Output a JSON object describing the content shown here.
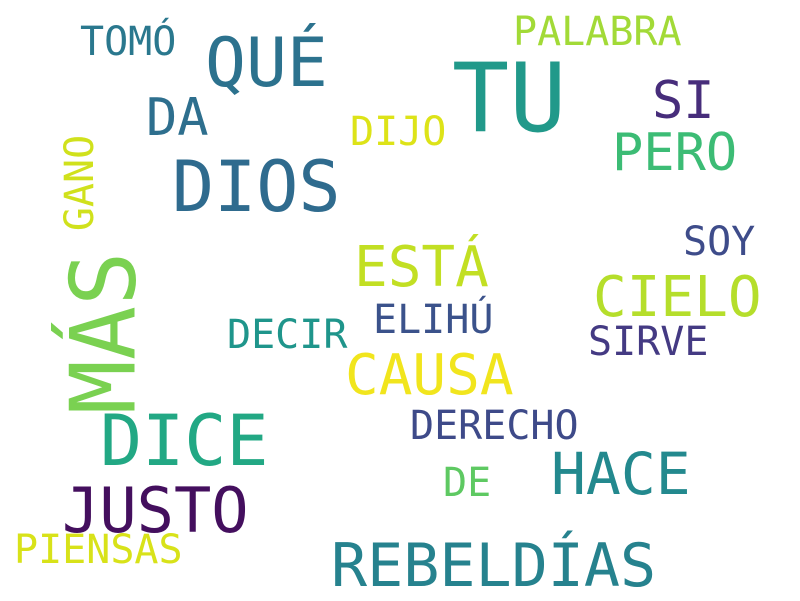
{
  "colors": {
    "background": "#ffffff",
    "palette": [
      "#440154",
      "#3b528b",
      "#21918c",
      "#5ec962",
      "#fde725"
    ]
  },
  "words": [
    {
      "text": "TU",
      "color": "#21998a"
    },
    {
      "text": "MÁS",
      "color": "#7ad151"
    },
    {
      "text": "DIOS",
      "color": "#2f6b8e"
    },
    {
      "text": "DICE",
      "color": "#22a884"
    },
    {
      "text": "QUÉ",
      "color": "#2c728e"
    },
    {
      "text": "JUSTO",
      "color": "#440f5e"
    },
    {
      "text": "REBELDÍAS",
      "color": "#26828e"
    },
    {
      "text": "HACE",
      "color": "#23898e"
    },
    {
      "text": "CIELO",
      "color": "#b5de2b"
    },
    {
      "text": "CAUSA",
      "color": "#f1e51d"
    },
    {
      "text": "ESTÁ",
      "color": "#c2df23"
    },
    {
      "text": "PERO",
      "color": "#3cbc75"
    },
    {
      "text": "DA",
      "color": "#2e6f8e"
    },
    {
      "text": "SI",
      "color": "#472d7b"
    },
    {
      "text": "PALABRA",
      "color": "#a2da37"
    },
    {
      "text": "DERECHO",
      "color": "#3e4a89"
    },
    {
      "text": "SIRVE",
      "color": "#443a83"
    },
    {
      "text": "ELIHÚ",
      "color": "#3b528b"
    },
    {
      "text": "DECIR",
      "color": "#1f958b"
    },
    {
      "text": "SOY",
      "color": "#3e4c8a"
    },
    {
      "text": "TOMÓ",
      "color": "#2a788e"
    },
    {
      "text": "DIJO",
      "color": "#dde318"
    },
    {
      "text": "PIENSAS",
      "color": "#d8e219"
    },
    {
      "text": "GANO",
      "color": "#d0e11c"
    },
    {
      "text": "DE",
      "color": "#5ec962"
    }
  ]
}
